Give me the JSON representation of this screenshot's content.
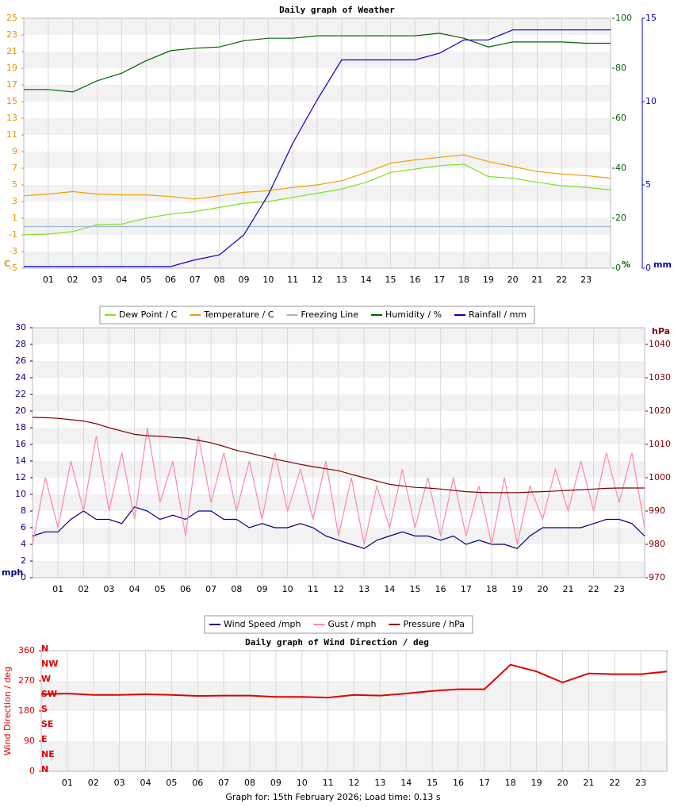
{
  "chart_data": [
    {
      "type": "line",
      "title": "Daily graph of Weather",
      "x": [
        0,
        1,
        2,
        3,
        4,
        5,
        6,
        7,
        8,
        9,
        10,
        11,
        12,
        13,
        14,
        15,
        16,
        17,
        18,
        19,
        20,
        21,
        22,
        23,
        24
      ],
      "xlim": [
        0,
        24
      ],
      "xticks": [
        {
          "value": 1,
          "label": "01"
        },
        {
          "value": 2,
          "label": "02"
        },
        {
          "value": 3,
          "label": "03"
        },
        {
          "value": 4,
          "label": "04"
        },
        {
          "value": 5,
          "label": "05"
        },
        {
          "value": 6,
          "label": "06"
        },
        {
          "value": 7,
          "label": "07"
        },
        {
          "value": 8,
          "label": "08"
        },
        {
          "value": 9,
          "label": "09"
        },
        10,
        11,
        12,
        13,
        14,
        15,
        16,
        17,
        18,
        19,
        20,
        21,
        22,
        23
      ],
      "y_label": "C",
      "ylim": [
        -5,
        25
      ],
      "yticks": [
        -5,
        -3,
        -1,
        1,
        3,
        5,
        7,
        9,
        11,
        13,
        15,
        17,
        19,
        21,
        23,
        25
      ],
      "y2_label": "%",
      "y2lim": [
        0,
        100
      ],
      "y2ticks": [
        0,
        20,
        40,
        60,
        80,
        100
      ],
      "y3_label": "mm",
      "y3lim": [
        0,
        15
      ],
      "y3ticks": [
        0,
        5,
        10,
        15
      ],
      "grid": true,
      "legend": "bottom",
      "series": [
        {
          "name": "Dew Point / C",
          "color": "#80e020",
          "values": [
            -1.0,
            -0.9,
            -0.6,
            0.2,
            0.3,
            1.0,
            1.5,
            1.8,
            2.3,
            2.8,
            3.0,
            3.5,
            4.0,
            4.5,
            5.3,
            6.5,
            6.9,
            7.3,
            7.5,
            6.0,
            5.8,
            5.3,
            4.9,
            4.7,
            4.4
          ]
        },
        {
          "name": "Temperature / C",
          "color": "#f0a000",
          "values": [
            3.7,
            3.9,
            4.2,
            3.9,
            3.8,
            3.8,
            3.6,
            3.3,
            3.7,
            4.1,
            4.3,
            4.7,
            5.0,
            5.5,
            6.5,
            7.6,
            8.0,
            8.3,
            8.6,
            7.8,
            7.2,
            6.6,
            6.3,
            6.1,
            5.8
          ]
        },
        {
          "name": "Freezing Line",
          "color": "#a0b8d0",
          "values": [
            0,
            0,
            0,
            0,
            0,
            0,
            0,
            0,
            0,
            0,
            0,
            0,
            0,
            0,
            0,
            0,
            0,
            0,
            0,
            0,
            0,
            0,
            0,
            0,
            0
          ]
        },
        {
          "name": "Humidity / %",
          "color": "#006400",
          "axis": "y2",
          "values": [
            71.5,
            71.5,
            70.5,
            75,
            78,
            83,
            87,
            88,
            88.5,
            91,
            92,
            92,
            93,
            93,
            93,
            93,
            93,
            94,
            92,
            88.5,
            90.5,
            90.5,
            90.5,
            90,
            90
          ]
        },
        {
          "name": "Rainfall / mm",
          "color": "#0000c8",
          "axis": "y3",
          "values": [
            0.1,
            0.1,
            0.1,
            0.1,
            0.1,
            0.1,
            0.1,
            0.5,
            0.8,
            2.0,
            4.4,
            7.5,
            10.1,
            12.5,
            12.5,
            12.5,
            12.5,
            12.9,
            13.7,
            13.7,
            14.3,
            14.3,
            14.3,
            14.3,
            14.3
          ]
        }
      ]
    },
    {
      "type": "line",
      "x": [
        0,
        0.5,
        1,
        1.5,
        2,
        2.5,
        3,
        3.5,
        4,
        4.5,
        5,
        5.5,
        6,
        6.5,
        7,
        7.5,
        8,
        8.5,
        9,
        9.5,
        10,
        10.5,
        11,
        11.5,
        12,
        12.5,
        13,
        13.5,
        14,
        14.5,
        15,
        15.5,
        16,
        16.5,
        17,
        17.5,
        18,
        18.5,
        19,
        19.5,
        20,
        20.5,
        21,
        21.5,
        22,
        22.5,
        23,
        23.5,
        24
      ],
      "xlim": [
        0,
        24
      ],
      "xticks": [
        {
          "value": 1,
          "label": "01"
        },
        {
          "value": 2,
          "label": "02"
        },
        {
          "value": 3,
          "label": "03"
        },
        {
          "value": 4,
          "label": "04"
        },
        {
          "value": 5,
          "label": "05"
        },
        {
          "value": 6,
          "label": "06"
        },
        {
          "value": 7,
          "label": "07"
        },
        {
          "value": 8,
          "label": "08"
        },
        {
          "value": 9,
          "label": "09"
        },
        10,
        11,
        12,
        13,
        14,
        15,
        16,
        17,
        18,
        19,
        20,
        21,
        22,
        23
      ],
      "y_label": "mph",
      "ylim": [
        0,
        30
      ],
      "yticks": [
        0,
        2,
        4,
        6,
        8,
        10,
        12,
        14,
        16,
        18,
        20,
        22,
        24,
        26,
        28,
        30
      ],
      "y2_label": "hPa",
      "y2lim": [
        970,
        1045
      ],
      "y2ticks": [
        970,
        980,
        990,
        1000,
        1010,
        1020,
        1030,
        1040
      ],
      "grid": true,
      "legend": "bottom",
      "series": [
        {
          "name": "Wind Speed /mph",
          "color": "#000080",
          "values": [
            5,
            5.5,
            5.5,
            7,
            8,
            7,
            7,
            6.5,
            8.5,
            8,
            7,
            7.5,
            7,
            8,
            8,
            7,
            7,
            6,
            6.5,
            6,
            6,
            6.5,
            6,
            5,
            4.5,
            4,
            3.5,
            4.5,
            5,
            5.5,
            5,
            5,
            4.5,
            5,
            4,
            4.5,
            4,
            4,
            3.5,
            5,
            6,
            6,
            6,
            6,
            6.5,
            7,
            7,
            6.5,
            5
          ]
        },
        {
          "name": "Gust / mph",
          "color": "#ff88aa",
          "values": [
            4,
            12,
            6,
            14,
            8,
            17,
            8,
            15,
            7,
            18,
            9,
            14,
            5,
            17,
            9,
            15,
            8,
            14,
            7,
            15,
            8,
            13,
            7,
            14,
            5,
            12,
            4,
            11,
            6,
            13,
            6,
            12,
            5,
            12,
            5,
            11,
            4,
            12,
            4,
            11,
            7,
            13,
            8,
            14,
            8,
            15,
            9,
            15,
            6
          ]
        },
        {
          "name": "Pressure / hPa",
          "color": "#800000",
          "axis": "y2",
          "values": [
            1018.1,
            1018.0,
            1017.8,
            1017.4,
            1017,
            1016.2,
            1015,
            1014,
            1013,
            1012.6,
            1012.4,
            1012.1,
            1011.9,
            1011.2,
            1010.5,
            1009.4,
            1008.2,
            1007.4,
            1006.5,
            1005.6,
            1004.8,
            1004,
            1003.3,
            1002.7,
            1002.1,
            1001,
            1000,
            999,
            998,
            997.5,
            997.1,
            996.9,
            996.6,
            996.2,
            995.8,
            995.6,
            995.5,
            995.5,
            995.5,
            995.7,
            995.8,
            996,
            996.2,
            996.4,
            996.6,
            996.8,
            996.9,
            996.9,
            996.9
          ]
        }
      ]
    },
    {
      "type": "line",
      "title": "Daily graph of Wind Direction / deg",
      "x": [
        0,
        1,
        2,
        3,
        4,
        5,
        6,
        7,
        8,
        9,
        10,
        11,
        12,
        13,
        14,
        15,
        16,
        17,
        18,
        19,
        20,
        21,
        22,
        23,
        24
      ],
      "xlim": [
        0,
        24
      ],
      "xticks": [
        {
          "value": 1,
          "label": "01"
        },
        {
          "value": 2,
          "label": "02"
        },
        {
          "value": 3,
          "label": "03"
        },
        {
          "value": 4,
          "label": "04"
        },
        {
          "value": 5,
          "label": "05"
        },
        {
          "value": 6,
          "label": "06"
        },
        {
          "value": 7,
          "label": "07"
        },
        {
          "value": 8,
          "label": "08"
        },
        {
          "value": 9,
          "label": "09"
        },
        10,
        11,
        12,
        13,
        14,
        15,
        16,
        17,
        18,
        19,
        20,
        21,
        22,
        23
      ],
      "y_label": "Wind Direction / deg",
      "ylim": [
        0,
        360
      ],
      "yticks": [
        0,
        90,
        180,
        270,
        360
      ],
      "compass_ticks": [
        {
          "value": 360,
          "label": "N"
        },
        {
          "value": 315,
          "label": "NW"
        },
        {
          "value": 270,
          "label": "W"
        },
        {
          "value": 225,
          "label": "SW"
        },
        {
          "value": 180,
          "label": "S"
        },
        {
          "value": 135,
          "label": "SE"
        },
        {
          "value": 90,
          "label": "E"
        },
        {
          "value": 45,
          "label": "NE"
        },
        {
          "value": 0,
          "label": "N"
        }
      ],
      "grid": true,
      "series": [
        {
          "color": "#e00000",
          "values": [
            230,
            232,
            228,
            228,
            230,
            228,
            225,
            226,
            226,
            222,
            222,
            220,
            228,
            226,
            232,
            240,
            245,
            245,
            318,
            298,
            265,
            292,
            290,
            290,
            298
          ]
        }
      ]
    }
  ],
  "footer": "Graph for: 15th February 2026; Load time: 0.13 s"
}
